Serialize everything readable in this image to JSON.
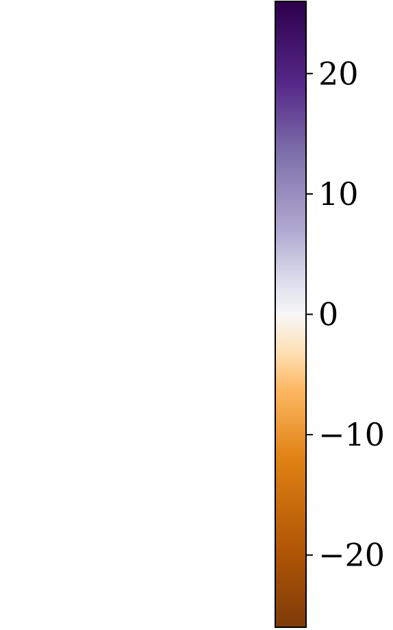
{
  "chart_data": {
    "type": "heatmap",
    "title": "",
    "xlabel": "",
    "ylabel": "",
    "colorbar": {
      "range": [
        -26,
        26
      ],
      "ticks": [
        -20,
        -10,
        0,
        10,
        20
      ],
      "tick_labels": [
        "−20",
        "−10",
        "0",
        "10",
        "20"
      ],
      "orientation": "vertical",
      "colormap": "PuOr",
      "colors": {
        "min": "#7f3b08",
        "low": "#e08214",
        "mid_low": "#fdb863",
        "center": "#f7f7f7",
        "mid_high": "#b2abd2",
        "high": "#8073ac",
        "max": "#2d004b"
      }
    }
  }
}
